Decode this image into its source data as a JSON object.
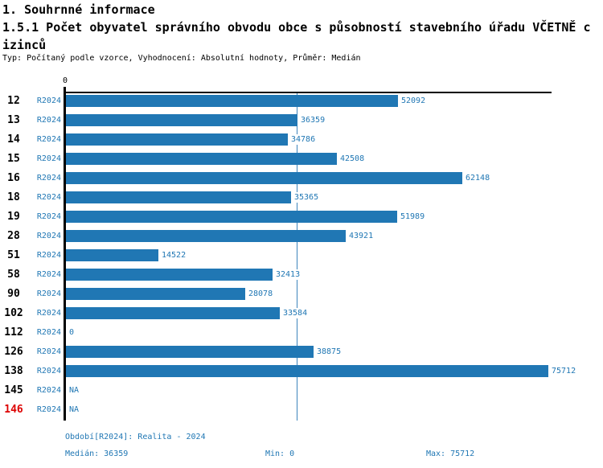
{
  "header": {
    "section": "1. Souhrnné informace",
    "title": "1.5.1 Počet obyvatel správního obvodu obce s působností stavebního úřadu VČETNĚ cizinců",
    "meta": "Typ: Počítaný podle vzorce, Vyhodnocení: Absolutní hodnoty, Průměr: Medián"
  },
  "chart_data": {
    "type": "bar",
    "orientation": "horizontal",
    "x_origin_label": "0",
    "categories": [
      "12",
      "13",
      "14",
      "15",
      "16",
      "18",
      "19",
      "28",
      "51",
      "58",
      "90",
      "102",
      "112",
      "126",
      "138",
      "145",
      "146"
    ],
    "series": [
      {
        "name": "R2024",
        "values": [
          52092,
          36359,
          34786,
          42508,
          62148,
          35365,
          51989,
          43921,
          14522,
          32413,
          28078,
          33584,
          0,
          38875,
          75712,
          null,
          null
        ]
      }
    ],
    "value_labels": [
      "52092",
      "36359",
      "34786",
      "42508",
      "62148",
      "35365",
      "51989",
      "43921",
      "14522",
      "32413",
      "28078",
      "33584",
      "0",
      "38875",
      "75712",
      "NA",
      "NA"
    ],
    "xlim": [
      0,
      75712
    ],
    "median": 36359,
    "min": 0,
    "max": 75712,
    "highlight_category": "146",
    "bar_color": "#2077b4",
    "label_color": "#2077b4",
    "highlight_color": "#dd0000",
    "median_line_color": "#3d85bc",
    "grid": false,
    "legend": false
  },
  "footer": {
    "period": "Období[R2024]: Realita - 2024",
    "median": "Medián: 36359",
    "min": "Min: 0",
    "max": "Max: 75712"
  }
}
